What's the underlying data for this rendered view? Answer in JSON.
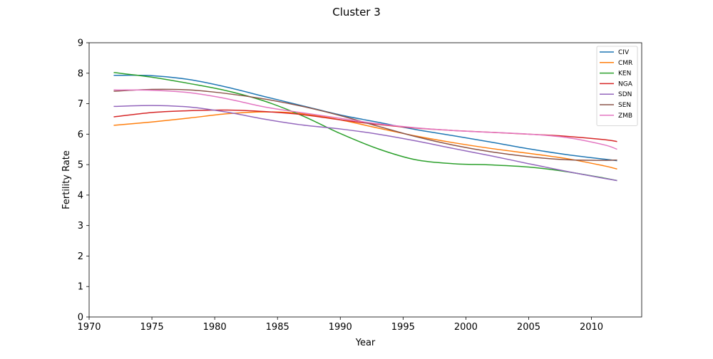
{
  "chart_data": {
    "type": "line",
    "title": "Cluster 3",
    "xlabel": "Year",
    "ylabel": "Fertility Rate",
    "xlim": [
      1970,
      2014
    ],
    "ylim": [
      0,
      9
    ],
    "xticks": [
      1970,
      1975,
      1980,
      1985,
      1990,
      1995,
      2000,
      2005,
      2010
    ],
    "yticks": [
      0,
      1,
      2,
      3,
      4,
      5,
      6,
      7,
      8,
      9
    ],
    "grid": false,
    "legend_position": "top-right",
    "x": [
      1972,
      1975,
      1978,
      1981,
      1984,
      1987,
      1990,
      1993,
      1996,
      1999,
      2002,
      2005,
      2008,
      2011,
      2012
    ],
    "series": [
      {
        "name": "CIV",
        "color": "#1f77b4",
        "values": [
          7.93,
          7.92,
          7.79,
          7.54,
          7.23,
          6.93,
          6.63,
          6.39,
          6.15,
          5.95,
          5.74,
          5.52,
          5.33,
          5.18,
          5.13
        ]
      },
      {
        "name": "CMR",
        "color": "#ff7f0e",
        "values": [
          6.29,
          6.4,
          6.53,
          6.67,
          6.73,
          6.67,
          6.47,
          6.2,
          5.94,
          5.72,
          5.53,
          5.37,
          5.2,
          4.96,
          4.86
        ]
      },
      {
        "name": "KEN",
        "color": "#2ca02c",
        "values": [
          8.02,
          7.87,
          7.66,
          7.42,
          7.08,
          6.6,
          6.02,
          5.52,
          5.16,
          5.03,
          4.99,
          4.92,
          4.77,
          4.56,
          4.48
        ]
      },
      {
        "name": "NGA",
        "color": "#d62728",
        "values": [
          6.57,
          6.71,
          6.77,
          6.79,
          6.74,
          6.64,
          6.47,
          6.32,
          6.2,
          6.12,
          6.06,
          6.0,
          5.93,
          5.82,
          5.76
        ]
      },
      {
        "name": "SDN",
        "color": "#9467bd",
        "values": [
          6.91,
          6.94,
          6.89,
          6.72,
          6.49,
          6.3,
          6.17,
          6.0,
          5.78,
          5.53,
          5.29,
          5.03,
          4.78,
          4.55,
          4.48
        ]
      },
      {
        "name": "SEN",
        "color": "#8c564b",
        "values": [
          7.41,
          7.47,
          7.45,
          7.33,
          7.15,
          6.91,
          6.61,
          6.26,
          5.92,
          5.64,
          5.42,
          5.26,
          5.16,
          5.14,
          5.15
        ]
      },
      {
        "name": "ZMB",
        "color": "#e377c2",
        "values": [
          7.45,
          7.44,
          7.36,
          7.16,
          6.89,
          6.7,
          6.52,
          6.34,
          6.21,
          6.12,
          6.06,
          6.0,
          5.89,
          5.65,
          5.51
        ]
      }
    ]
  }
}
